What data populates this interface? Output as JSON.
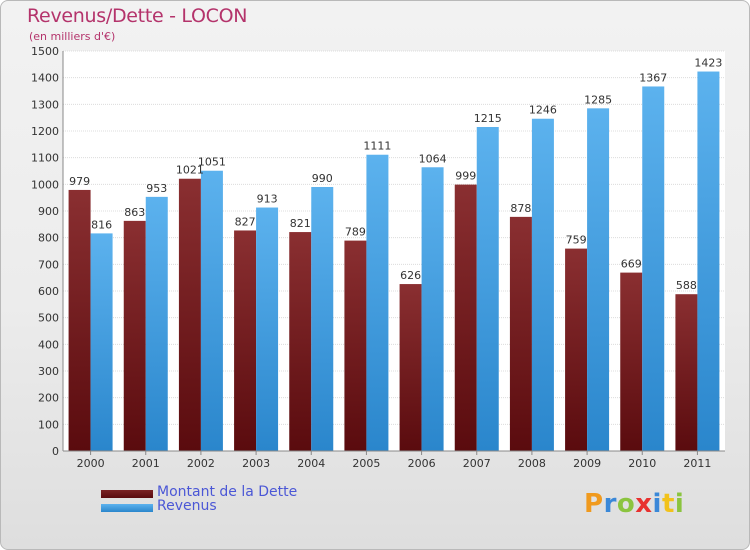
{
  "header": {
    "title": "Revenus/Dette - LOCON",
    "subtitle": "(en milliers d'€)"
  },
  "chart_data": {
    "type": "bar",
    "categories": [
      "2000",
      "2001",
      "2002",
      "2003",
      "2004",
      "2005",
      "2006",
      "2007",
      "2008",
      "2009",
      "2010",
      "2011"
    ],
    "series": [
      {
        "name": "Montant de la Dette",
        "color": "#7a2224",
        "values": [
          979,
          863,
          1021,
          827,
          821,
          789,
          626,
          999,
          878,
          759,
          669,
          588
        ]
      },
      {
        "name": "Revenus",
        "color": "#3a9ee2",
        "values": [
          816,
          953,
          1051,
          913,
          990,
          1111,
          1064,
          1215,
          1246,
          1285,
          1367,
          1423
        ]
      }
    ],
    "ylim": [
      0,
      1500
    ],
    "yticks": [
      0,
      100,
      200,
      300,
      400,
      500,
      600,
      700,
      800,
      900,
      1000,
      1100,
      1200,
      1300,
      1400,
      1500
    ],
    "grid": true,
    "legend_position": "bottom-left"
  },
  "legend": {
    "items": [
      {
        "label": "Montant de la Dette",
        "color": "#6b0f12"
      },
      {
        "label": "Revenus",
        "color": "#3a9ee2"
      }
    ]
  },
  "logo": {
    "letters": [
      {
        "char": "P",
        "color": "#f09a1e"
      },
      {
        "char": "r",
        "color": "#3a88d8"
      },
      {
        "char": "o",
        "color": "#8bc43f"
      },
      {
        "char": "x",
        "color": "#e8312f"
      },
      {
        "char": "i",
        "color": "#3a88d8"
      },
      {
        "char": "t",
        "color": "#f2c21b"
      },
      {
        "char": "i",
        "color": "#8bc43f"
      }
    ]
  }
}
